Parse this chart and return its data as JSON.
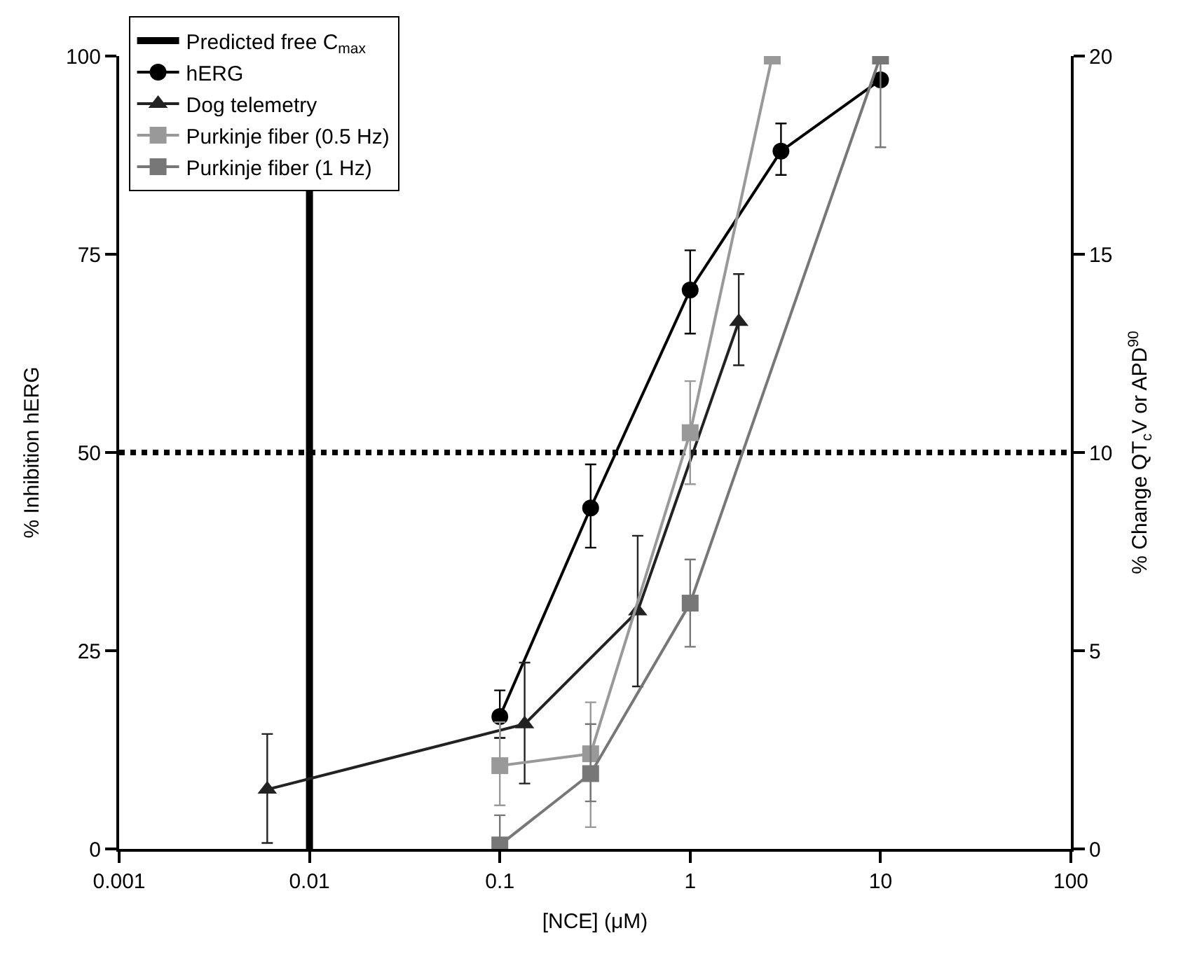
{
  "chart_data": {
    "type": "line",
    "xlabel": "[NCE] (μM)",
    "ylabel": "% Inhibition hERG",
    "y2label": "% Change QT$_{c}$V or APD$^{90}$",
    "log": "x",
    "xlim": [
      0.001,
      100
    ],
    "xticks": [
      0.001,
      0.01,
      0.1,
      1,
      10,
      100
    ],
    "ylim": [
      0,
      100
    ],
    "yticks": [
      0,
      25,
      50,
      75,
      100
    ],
    "y2lim": [
      0,
      20
    ],
    "y2ticks": [
      0,
      5,
      10,
      15,
      20
    ],
    "legend": "top left",
    "ref_lines": [
      {
        "axis": "x",
        "value": 0.01,
        "label": "Predicted free C$_{max}$",
        "color": "#000000",
        "line_style": "solid"
      },
      {
        "axis": "y",
        "value": 50,
        "color": "#000000",
        "line_style": "dotted"
      }
    ],
    "series": [
      {
        "name": "hERG",
        "color": "#000000",
        "marker": "circle",
        "x": [
          0.1,
          0.3,
          1,
          3,
          10
        ],
        "values": [
          16.7,
          43,
          70.5,
          88,
          97
        ],
        "errors": [
          [
            14,
            20
          ],
          [
            38,
            48.5
          ],
          [
            65,
            75.5
          ],
          [
            85,
            91.5
          ],
          null
        ]
      },
      {
        "name": "Dog telemetry",
        "color": "#222222",
        "marker": "triangle",
        "axis": "y2",
        "x": [
          0.006,
          0.135,
          0.53,
          1.8
        ],
        "values": [
          1.5,
          3.15,
          6.0,
          13.3
        ],
        "errors": [
          [
            0.15,
            2.9
          ],
          [
            1.65,
            4.7
          ],
          [
            4.1,
            7.9
          ],
          [
            12.2,
            14.5
          ]
        ]
      },
      {
        "name": "Purkinje fiber (0.5 Hz)",
        "color": "#999999",
        "marker": "square",
        "axis": "y2",
        "x": [
          0.1,
          0.3,
          1,
          2.7
        ],
        "values": [
          2.1,
          2.4,
          10.5,
          20
        ],
        "errors": [
          [
            1.1,
            3.2
          ],
          [
            0.55,
            3.7
          ],
          [
            9.2,
            11.8
          ],
          null
        ]
      },
      {
        "name": "Purkinje fiber (1 Hz)",
        "color": "#777777",
        "marker": "square",
        "axis": "y2",
        "x": [
          0.1,
          0.3,
          1,
          10
        ],
        "values": [
          0.1,
          1.9,
          6.2,
          20
        ],
        "errors": [
          [
            0,
            0.85
          ],
          [
            1.2,
            3.15
          ],
          [
            5.1,
            7.3
          ],
          [
            17.7,
            20
          ]
        ]
      }
    ]
  }
}
